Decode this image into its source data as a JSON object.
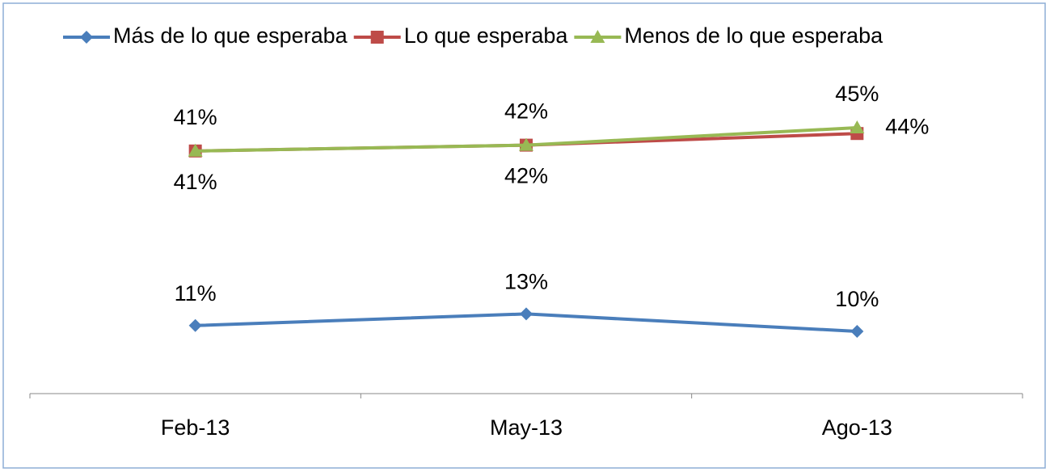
{
  "chart_data": {
    "type": "line",
    "categories": [
      "Feb-13",
      "May-13",
      "Ago-13"
    ],
    "series": [
      {
        "name": "Más de lo que esperaba",
        "color": "#4a7ebb",
        "marker": "diamond",
        "values": [
          11,
          13,
          10
        ],
        "value_labels": [
          "11%",
          "13%",
          "10%"
        ]
      },
      {
        "name": "Lo que esperaba",
        "color": "#be4b48",
        "marker": "square",
        "values": [
          41,
          42,
          44
        ],
        "value_labels": [
          "41%",
          "42%",
          "44%"
        ]
      },
      {
        "name": "Menos de lo que esperaba",
        "color": "#98b954",
        "marker": "triangle",
        "values": [
          41,
          42,
          45
        ],
        "value_labels": [
          "41%",
          "42%",
          "45%"
        ]
      }
    ],
    "ylim": [
      0,
      50
    ],
    "legend": "top"
  }
}
